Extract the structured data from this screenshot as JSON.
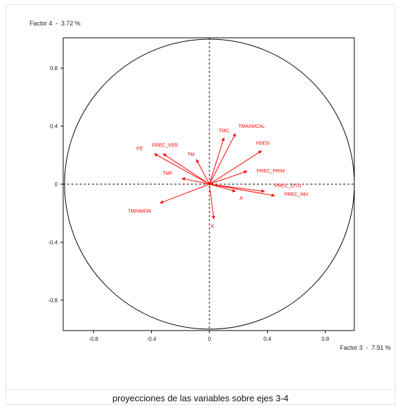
{
  "caption": "proyecciones de las variables sobre ejes 3-4",
  "chart_data": {
    "type": "scatter",
    "ylabel": "Factor 4  -  3.72 %",
    "xlabel": "Factor 3  -  7.91 %",
    "xlim": [
      -1,
      1
    ],
    "ylim": [
      -1,
      1
    ],
    "x_ticks": [
      -0.8,
      -0.4,
      0,
      0.4,
      0.8
    ],
    "y_ticks": [
      0.8,
      0.4,
      0,
      -0.4,
      -0.8
    ],
    "x_tick_labels": [
      "-0.8",
      "-0.4",
      "0",
      "0.4",
      "0.8"
    ],
    "y_tick_labels": [
      "0.8",
      "0.4",
      "0",
      "-0.4",
      "-0.8"
    ],
    "vector_color": "#ff0000",
    "vectors": [
      {
        "name": "TMC",
        "x": 0.1,
        "y": 0.32
      },
      {
        "name": "TMAXMCAL",
        "x": 0.18,
        "y": 0.35
      },
      {
        "name": "HSEG",
        "x": 0.36,
        "y": 0.23
      },
      {
        "name": "PREC_VER",
        "x": -0.32,
        "y": 0.21
      },
      {
        "name": "PE",
        "x": -0.38,
        "y": 0.21
      },
      {
        "name": "TM",
        "x": -0.09,
        "y": 0.17
      },
      {
        "name": "PREC_PRIM",
        "x": 0.26,
        "y": 0.09
      },
      {
        "name": "TMF",
        "x": -0.19,
        "y": 0.04
      },
      {
        "name": "PREC_OTO",
        "x": 0.38,
        "y": -0.05
      },
      {
        "name": "PREC_INV",
        "x": 0.45,
        "y": -0.08
      },
      {
        "name": "A",
        "x": 0.18,
        "y": -0.05
      },
      {
        "name": "TMINMFRI",
        "x": -0.34,
        "y": -0.13
      },
      {
        "name": "K",
        "x": 0.03,
        "y": -0.24
      }
    ]
  }
}
